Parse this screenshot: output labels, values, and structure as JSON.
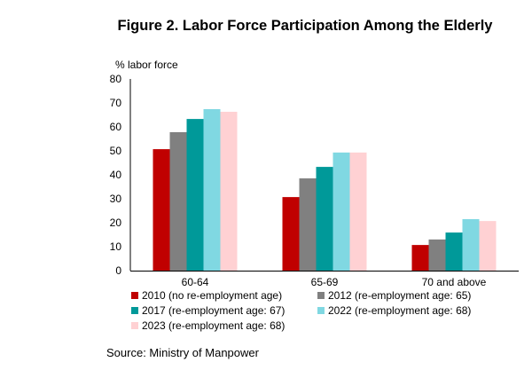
{
  "chart_data": {
    "type": "bar",
    "title": "Figure 2. Labor Force Participation Among the Elderly",
    "ylabel": "% labor force",
    "xlabel": "",
    "ylim": [
      0,
      80
    ],
    "yticks": [
      0,
      10,
      20,
      30,
      40,
      50,
      60,
      70,
      80
    ],
    "grid": false,
    "legend_position": "bottom",
    "categories": [
      "60-64",
      "65-69",
      "70 and above"
    ],
    "series": [
      {
        "name": "2010 (no re-employment age)",
        "color": "#C00000",
        "values": [
          50.7,
          30.7,
          10.7
        ]
      },
      {
        "name": "2012 (re-employment age: 65)",
        "color": "#808080",
        "values": [
          57.8,
          38.5,
          13.0
        ]
      },
      {
        "name": "2017 (re-employment age: 67)",
        "color": "#009999",
        "values": [
          63.3,
          43.3,
          15.9
        ]
      },
      {
        "name": "2022 (re-employment age: 68)",
        "color": "#80D8E2",
        "values": [
          67.4,
          49.3,
          21.5
        ]
      },
      {
        "name": "2023 (re-employment age: 68)",
        "color": "#FFD1D3",
        "values": [
          66.3,
          49.3,
          20.7
        ]
      }
    ],
    "source": "Source: Ministry of Manpower"
  }
}
